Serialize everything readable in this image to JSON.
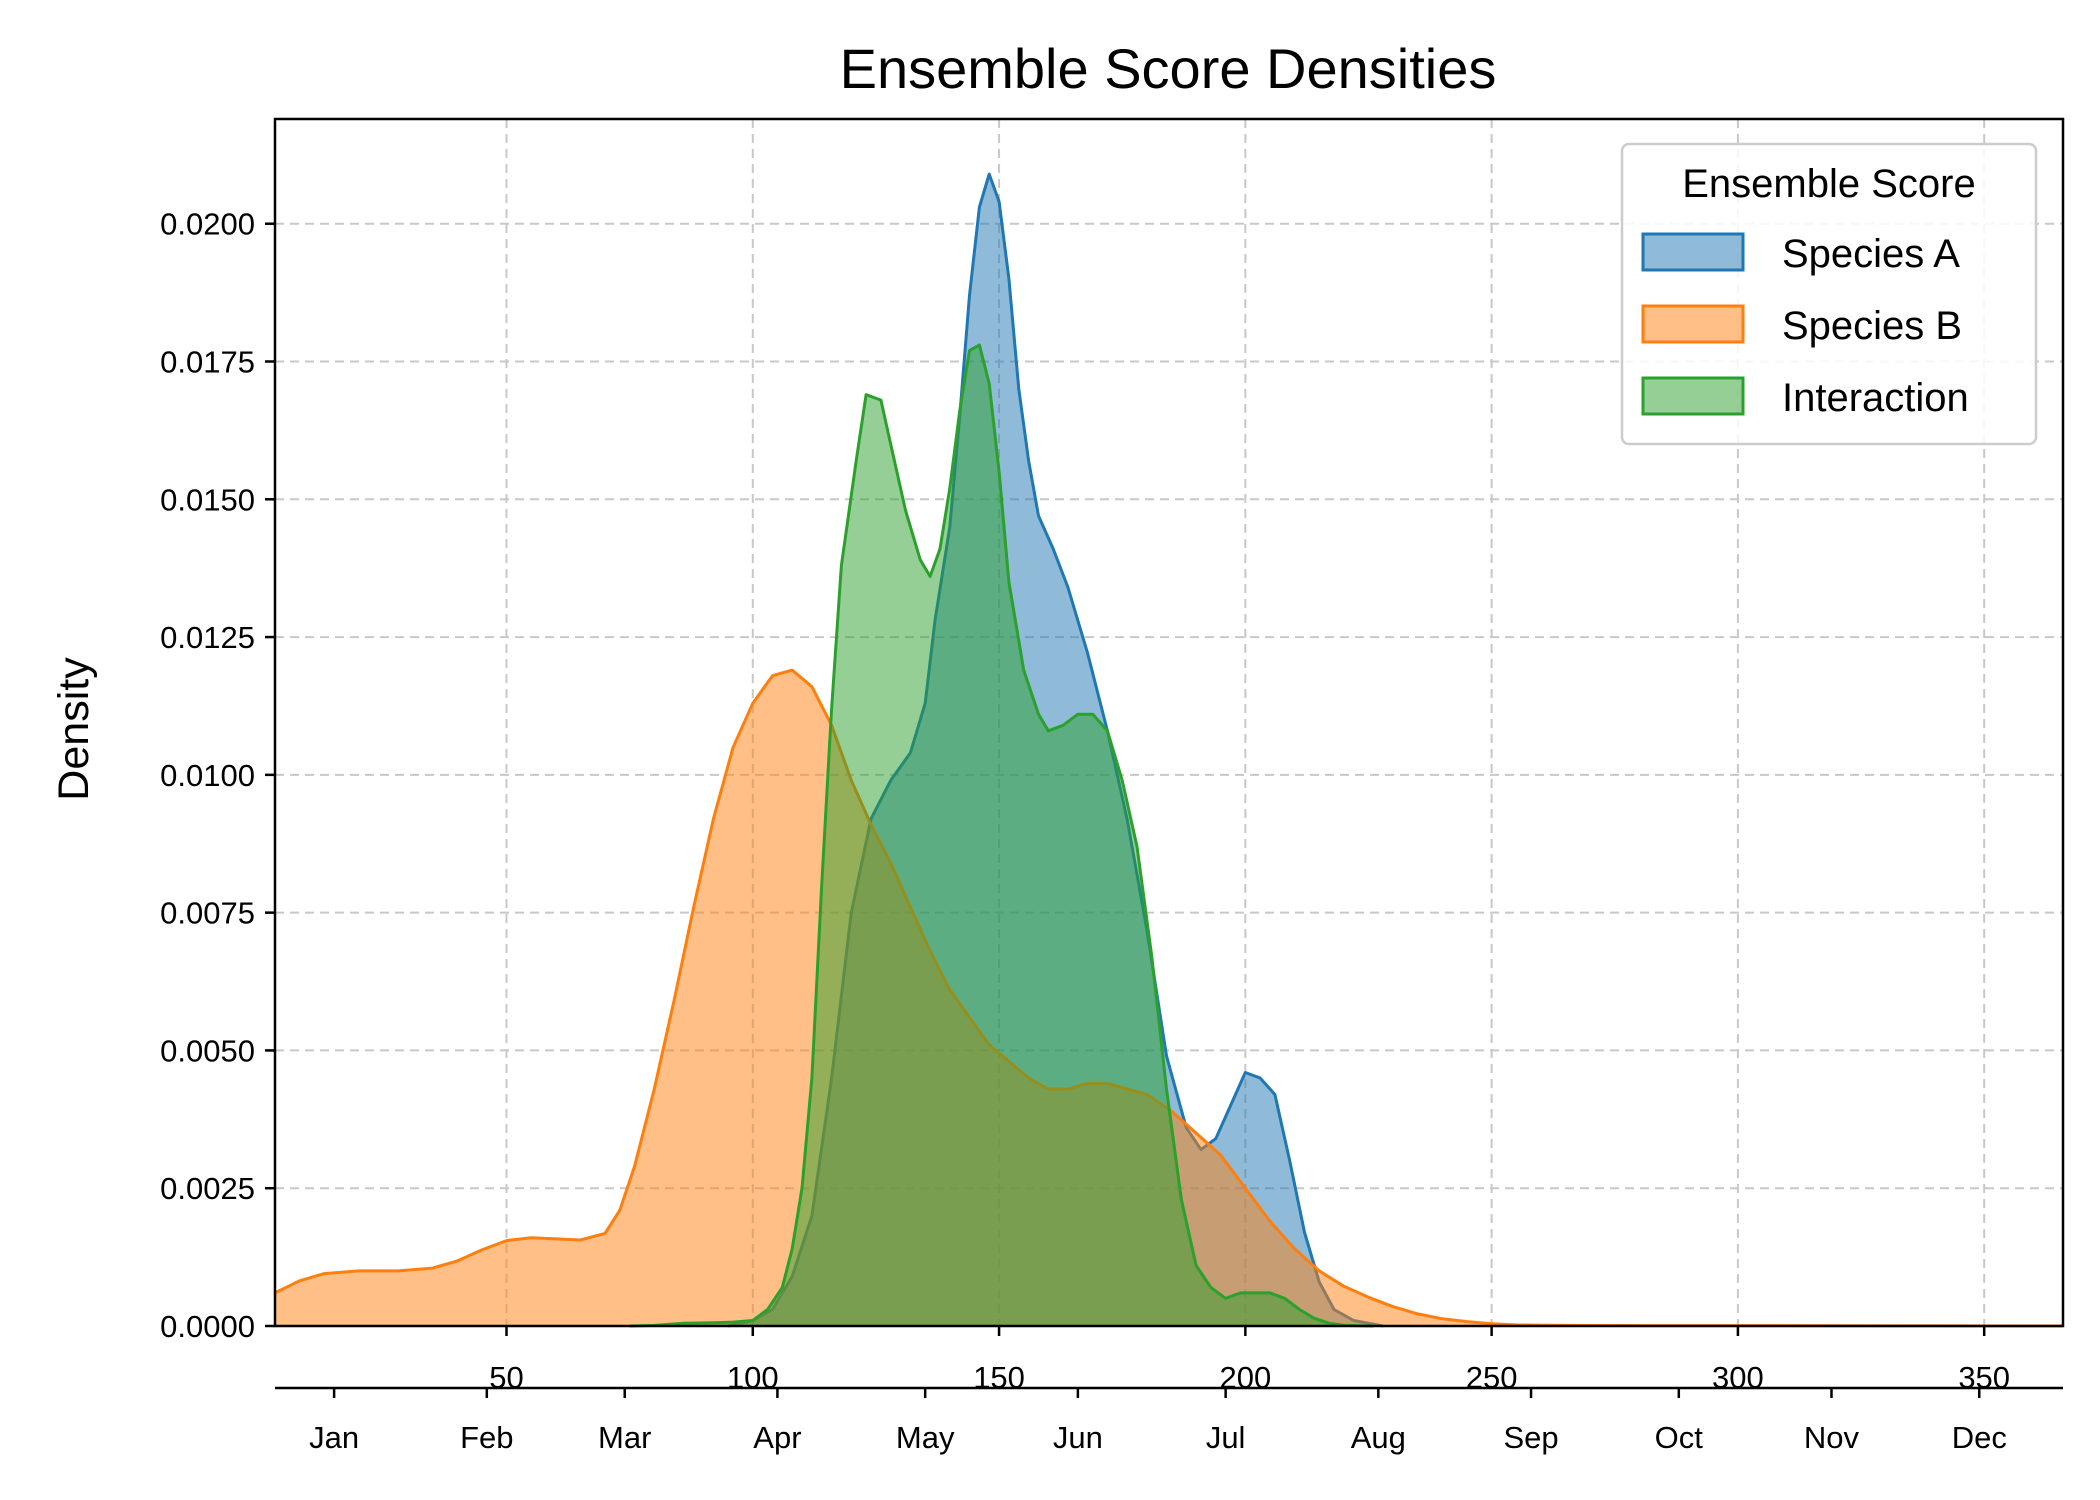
{
  "chart_data": {
    "type": "area",
    "title": "Ensemble Score Densities",
    "xlabel": "",
    "ylabel": "Density",
    "xlim": [
      3,
      366
    ],
    "ylim": [
      0,
      0.0219
    ],
    "x_ticks": [
      50,
      100,
      150,
      200,
      250,
      300,
      350
    ],
    "y_ticks": [
      "0.0000",
      "0.0025",
      "0.0050",
      "0.0075",
      "0.0100",
      "0.0125",
      "0.0150",
      "0.0175",
      "0.0200"
    ],
    "secondary_x_ticks": [
      {
        "label": "Jan",
        "x": 15
      },
      {
        "label": "Feb",
        "x": 46
      },
      {
        "label": "Mar",
        "x": 74
      },
      {
        "label": "Apr",
        "x": 105
      },
      {
        "label": "May",
        "x": 135
      },
      {
        "label": "Jun",
        "x": 166
      },
      {
        "label": "Jul",
        "x": 196
      },
      {
        "label": "Aug",
        "x": 227
      },
      {
        "label": "Sep",
        "x": 258
      },
      {
        "label": "Oct",
        "x": 288
      },
      {
        "label": "Nov",
        "x": 319
      },
      {
        "label": "Dec",
        "x": 349
      }
    ],
    "grid": true,
    "legend": {
      "title": "Ensemble Score",
      "placement": "top-right"
    },
    "series": [
      {
        "name": "Species A",
        "color": "#1f77b4",
        "points": [
          [
            95,
            0
          ],
          [
            100,
            0.0001
          ],
          [
            104,
            0.0003
          ],
          [
            108,
            0.0009
          ],
          [
            112,
            0.002
          ],
          [
            116,
            0.0045
          ],
          [
            120,
            0.0075
          ],
          [
            124,
            0.0092
          ],
          [
            128,
            0.0099
          ],
          [
            132,
            0.0104
          ],
          [
            135,
            0.0113
          ],
          [
            137,
            0.0128
          ],
          [
            140,
            0.0145
          ],
          [
            142,
            0.0165
          ],
          [
            144,
            0.0187
          ],
          [
            146,
            0.0203
          ],
          [
            148,
            0.0209
          ],
          [
            150,
            0.0204
          ],
          [
            152,
            0.019
          ],
          [
            154,
            0.017
          ],
          [
            156,
            0.0157
          ],
          [
            158,
            0.0147
          ],
          [
            161,
            0.0141
          ],
          [
            164,
            0.0134
          ],
          [
            168,
            0.0122
          ],
          [
            172,
            0.0108
          ],
          [
            176,
            0.0092
          ],
          [
            180,
            0.0072
          ],
          [
            184,
            0.0049
          ],
          [
            188,
            0.0036
          ],
          [
            191,
            0.0032
          ],
          [
            194,
            0.0034
          ],
          [
            197,
            0.004
          ],
          [
            200,
            0.0046
          ],
          [
            203,
            0.0045
          ],
          [
            206,
            0.0042
          ],
          [
            209,
            0.003
          ],
          [
            212,
            0.0017
          ],
          [
            215,
            0.0008
          ],
          [
            218,
            0.0003
          ],
          [
            222,
            0.0001
          ],
          [
            228,
            0
          ]
        ]
      },
      {
        "name": "Species B",
        "color": "#ff7f0e",
        "points": [
          [
            3,
            0.0006
          ],
          [
            8,
            0.00082
          ],
          [
            13,
            0.00095
          ],
          [
            20,
            0.001
          ],
          [
            28,
            0.001
          ],
          [
            35,
            0.00105
          ],
          [
            40,
            0.00118
          ],
          [
            45,
            0.00138
          ],
          [
            50,
            0.00155
          ],
          [
            55,
            0.0016
          ],
          [
            60,
            0.00158
          ],
          [
            65,
            0.00156
          ],
          [
            70,
            0.00168
          ],
          [
            73,
            0.0021
          ],
          [
            76,
            0.0029
          ],
          [
            80,
            0.0043
          ],
          [
            84,
            0.0059
          ],
          [
            88,
            0.0076
          ],
          [
            92,
            0.0092
          ],
          [
            96,
            0.0105
          ],
          [
            100,
            0.0113
          ],
          [
            104,
            0.0118
          ],
          [
            108,
            0.0119
          ],
          [
            112,
            0.0116
          ],
          [
            116,
            0.0109
          ],
          [
            120,
            0.0099
          ],
          [
            124,
            0.0091
          ],
          [
            128,
            0.0084
          ],
          [
            132,
            0.0076
          ],
          [
            136,
            0.0068
          ],
          [
            140,
            0.0061
          ],
          [
            144,
            0.0056
          ],
          [
            148,
            0.0051
          ],
          [
            152,
            0.0048
          ],
          [
            156,
            0.0045
          ],
          [
            160,
            0.0043
          ],
          [
            164,
            0.0043
          ],
          [
            168,
            0.0044
          ],
          [
            172,
            0.0044
          ],
          [
            176,
            0.0043
          ],
          [
            180,
            0.0042
          ],
          [
            185,
            0.0039
          ],
          [
            190,
            0.0035
          ],
          [
            195,
            0.0031
          ],
          [
            200,
            0.0025
          ],
          [
            205,
            0.0019
          ],
          [
            210,
            0.0014
          ],
          [
            215,
            0.001
          ],
          [
            220,
            0.00072
          ],
          [
            225,
            0.00052
          ],
          [
            230,
            0.00035
          ],
          [
            235,
            0.00022
          ],
          [
            240,
            0.00013
          ],
          [
            245,
            8e-05
          ],
          [
            250,
            4e-05
          ],
          [
            255,
            2e-05
          ],
          [
            265,
            1e-05
          ],
          [
            280,
            8e-06
          ],
          [
            300,
            8e-06
          ],
          [
            320,
            4e-06
          ],
          [
            340,
            1e-06
          ],
          [
            366,
            0
          ]
        ]
      },
      {
        "name": "Interaction",
        "color": "#2ca02c",
        "points": [
          [
            75,
            0
          ],
          [
            80,
            1e-05
          ],
          [
            86,
            5e-05
          ],
          [
            92,
            6e-05
          ],
          [
            96,
            7e-05
          ],
          [
            100,
            0.0001
          ],
          [
            103,
            0.0003
          ],
          [
            106,
            0.0007
          ],
          [
            108,
            0.0014
          ],
          [
            110,
            0.0025
          ],
          [
            112,
            0.0045
          ],
          [
            114,
            0.008
          ],
          [
            116,
            0.0112
          ],
          [
            118,
            0.0138
          ],
          [
            121,
            0.0157
          ],
          [
            123,
            0.0169
          ],
          [
            126,
            0.0168
          ],
          [
            128,
            0.016
          ],
          [
            131,
            0.0148
          ],
          [
            134,
            0.0139
          ],
          [
            136,
            0.0136
          ],
          [
            138,
            0.0141
          ],
          [
            140,
            0.0152
          ],
          [
            142,
            0.0166
          ],
          [
            144,
            0.0177
          ],
          [
            146,
            0.0178
          ],
          [
            148,
            0.0171
          ],
          [
            150,
            0.0155
          ],
          [
            152,
            0.0135
          ],
          [
            155,
            0.0119
          ],
          [
            158,
            0.0111
          ],
          [
            160,
            0.0108
          ],
          [
            163,
            0.0109
          ],
          [
            166,
            0.0111
          ],
          [
            169,
            0.0111
          ],
          [
            172,
            0.0108
          ],
          [
            175,
            0.0099
          ],
          [
            178,
            0.0087
          ],
          [
            181,
            0.0067
          ],
          [
            184,
            0.0043
          ],
          [
            187,
            0.0023
          ],
          [
            190,
            0.0011
          ],
          [
            193,
            0.0007
          ],
          [
            196,
            0.0005
          ],
          [
            199,
            0.0006
          ],
          [
            202,
            0.0006
          ],
          [
            205,
            0.0006
          ],
          [
            208,
            0.0005
          ],
          [
            211,
            0.0003
          ],
          [
            214,
            0.00014
          ],
          [
            217,
            5e-05
          ],
          [
            220,
            1e-05
          ],
          [
            226,
            0
          ]
        ]
      }
    ]
  }
}
